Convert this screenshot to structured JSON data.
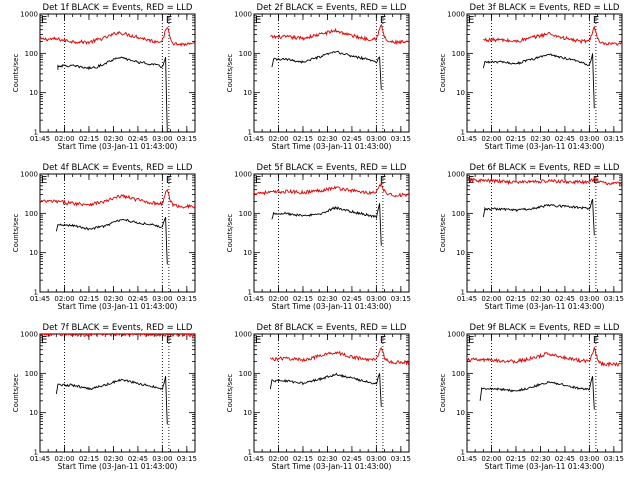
{
  "figure": {
    "background": "#ffffff"
  },
  "colors": {
    "events": "#000000",
    "lld": "#e00000",
    "frame": "#000000"
  },
  "chart_data": [
    {
      "type": "line",
      "scale_y": "log",
      "ylim": [
        1,
        1000
      ],
      "xlim": [
        "01:45",
        "03:20"
      ],
      "title": "Det 1f BLACK = Events, RED = LLD",
      "xlabel": "Start Time (03-Jan-11 01:43:00)",
      "ylabel": "Counts/sec",
      "x_ticks": [
        "01:45",
        "02:00",
        "02:15",
        "02:30",
        "02:45",
        "03:00",
        "03:15"
      ],
      "y_ticks": [
        "1",
        "10",
        "100",
        "1000"
      ],
      "dotted_vlines": [
        "02:00",
        "03:00"
      ],
      "flag_label": "E",
      "flag_time": "03:04",
      "series": [
        {
          "color": "#e00000",
          "x": [
            "01:45",
            "01:55",
            "02:05",
            "02:15",
            "02:25",
            "02:33",
            "02:45",
            "02:55",
            "03:00",
            "03:03",
            "03:05",
            "03:07",
            "03:10",
            "03:20"
          ],
          "y": [
            230,
            230,
            200,
            190,
            250,
            340,
            260,
            200,
            210,
            480,
            240,
            180,
            170,
            170
          ]
        },
        {
          "color": "#000000",
          "x": [
            "01:56",
            "01:56",
            "02:05",
            "02:15",
            "02:20",
            "02:33",
            "02:45",
            "02:55",
            "03:00",
            "03:02",
            "03:03",
            "03:03"
          ],
          "y": [
            38,
            48,
            48,
            42,
            45,
            80,
            60,
            52,
            45,
            80,
            1,
            1
          ]
        }
      ]
    },
    {
      "type": "line",
      "scale_y": "log",
      "ylim": [
        1,
        1000
      ],
      "xlim": [
        "01:45",
        "03:20"
      ],
      "title": "Det 2f BLACK = Events, RED = LLD",
      "xlabel": "Start Time (03-Jan-11 01:43:00)",
      "ylabel": "Counts/sec",
      "x_ticks": [
        "01:45",
        "02:00",
        "02:15",
        "02:30",
        "02:45",
        "03:00",
        "03:15"
      ],
      "y_ticks": [
        "1",
        "10",
        "100",
        "1000"
      ],
      "dotted_vlines": [
        "02:00",
        "03:00"
      ],
      "flag_label": "E",
      "flag_time": "03:04",
      "series": [
        {
          "color": "#e00000",
          "x": [
            "01:55",
            "02:05",
            "02:15",
            "02:25",
            "02:35",
            "02:45",
            "02:55",
            "03:00",
            "03:03",
            "03:05",
            "03:07",
            "03:10",
            "03:20"
          ],
          "y": [
            260,
            260,
            240,
            300,
            380,
            280,
            230,
            240,
            520,
            260,
            200,
            190,
            190
          ]
        },
        {
          "color": "#000000",
          "x": [
            "01:56",
            "01:57",
            "02:05",
            "02:15",
            "02:25",
            "02:35",
            "02:45",
            "02:55",
            "03:00",
            "03:02",
            "03:03",
            "03:03"
          ],
          "y": [
            45,
            70,
            70,
            60,
            80,
            110,
            85,
            70,
            60,
            80,
            12,
            12
          ]
        }
      ]
    },
    {
      "type": "line",
      "scale_y": "log",
      "ylim": [
        1,
        1000
      ],
      "xlim": [
        "01:45",
        "03:20"
      ],
      "title": "Det 3f BLACK = Events, RED = LLD",
      "xlabel": "Start Time (03-Jan-11 01:43:00)",
      "ylabel": "Counts/sec",
      "x_ticks": [
        "01:45",
        "02:00",
        "02:15",
        "02:30",
        "02:45",
        "03:00",
        "03:15"
      ],
      "y_ticks": [
        "1",
        "10",
        "100",
        "1000"
      ],
      "dotted_vlines": [
        "02:00",
        "03:00"
      ],
      "flag_label": "E",
      "flag_time": "03:04",
      "series": [
        {
          "color": "#e00000",
          "x": [
            "01:55",
            "02:05",
            "02:15",
            "02:25",
            "02:35",
            "02:45",
            "02:55",
            "03:00",
            "03:03",
            "03:05",
            "03:07",
            "03:10",
            "03:20"
          ],
          "y": [
            220,
            220,
            200,
            250,
            320,
            240,
            200,
            210,
            470,
            230,
            180,
            170,
            170
          ]
        },
        {
          "color": "#000000",
          "x": [
            "01:55",
            "01:56",
            "02:05",
            "02:15",
            "02:25",
            "02:35",
            "02:45",
            "02:55",
            "03:00",
            "03:02",
            "03:03",
            "03:03"
          ],
          "y": [
            42,
            60,
            60,
            55,
            70,
            95,
            75,
            60,
            50,
            100,
            4,
            4
          ]
        }
      ]
    },
    {
      "type": "line",
      "scale_y": "log",
      "ylim": [
        1,
        1000
      ],
      "xlim": [
        "01:45",
        "03:20"
      ],
      "title": "Det 4f BLACK = Events, RED = LLD",
      "xlabel": "Start Time (03-Jan-11 01:43:00)",
      "ylabel": "Counts/sec",
      "x_ticks": [
        "01:45",
        "02:00",
        "02:15",
        "02:30",
        "02:45",
        "03:00",
        "03:15"
      ],
      "y_ticks": [
        "1",
        "10",
        "100",
        "1000"
      ],
      "dotted_vlines": [
        "02:00",
        "03:00"
      ],
      "flag_label": "E",
      "flag_time": "03:04",
      "series": [
        {
          "color": "#e00000",
          "x": [
            "01:45",
            "01:55",
            "02:05",
            "02:15",
            "02:25",
            "02:35",
            "02:45",
            "02:55",
            "03:00",
            "03:03",
            "03:05",
            "03:07",
            "03:10",
            "03:20"
          ],
          "y": [
            200,
            200,
            180,
            170,
            200,
            280,
            220,
            180,
            180,
            420,
            200,
            160,
            150,
            150
          ]
        },
        {
          "color": "#000000",
          "x": [
            "01:55",
            "01:56",
            "02:05",
            "02:15",
            "02:25",
            "02:35",
            "02:45",
            "02:55",
            "03:00",
            "03:02",
            "03:03",
            "03:03"
          ],
          "y": [
            35,
            50,
            50,
            40,
            48,
            70,
            58,
            50,
            45,
            80,
            5,
            5
          ]
        }
      ]
    },
    {
      "type": "line",
      "scale_y": "log",
      "ylim": [
        1,
        1000
      ],
      "xlim": [
        "01:45",
        "03:20"
      ],
      "title": "Det 5f BLACK = Events, RED = LLD",
      "xlabel": "Start Time (03-Jan-11 01:43:00)",
      "ylabel": "Counts/sec",
      "x_ticks": [
        "01:45",
        "02:00",
        "02:15",
        "02:30",
        "02:45",
        "03:00",
        "03:15"
      ],
      "y_ticks": [
        "1",
        "10",
        "100",
        "1000"
      ],
      "dotted_vlines": [
        "02:00",
        "03:00"
      ],
      "flag_label": "E",
      "flag_time": "03:04",
      "series": [
        {
          "color": "#e00000",
          "x": [
            "01:45",
            "01:55",
            "02:05",
            "02:15",
            "02:25",
            "02:35",
            "02:45",
            "02:55",
            "03:00",
            "03:03",
            "03:05",
            "03:07",
            "03:10",
            "03:20"
          ],
          "y": [
            330,
            340,
            360,
            340,
            380,
            450,
            380,
            330,
            340,
            560,
            360,
            300,
            290,
            290
          ]
        },
        {
          "color": "#000000",
          "x": [
            "01:56",
            "01:57",
            "02:05",
            "02:15",
            "02:25",
            "02:35",
            "02:45",
            "02:55",
            "03:00",
            "03:02",
            "03:03",
            "03:03"
          ],
          "y": [
            70,
            100,
            100,
            85,
            95,
            140,
            110,
            90,
            80,
            180,
            15,
            15
          ]
        }
      ]
    },
    {
      "type": "line",
      "scale_y": "log",
      "ylim": [
        1,
        1000
      ],
      "xlim": [
        "01:45",
        "03:20"
      ],
      "title": "Det 6f BLACK = Events, RED = LLD",
      "xlabel": "Start Time (03-Jan-11 01:43:00)",
      "ylabel": "Counts/sec",
      "x_ticks": [
        "01:45",
        "02:00",
        "02:15",
        "02:30",
        "02:45",
        "03:00",
        "03:15"
      ],
      "y_ticks": [
        "1",
        "10",
        "100",
        "1000"
      ],
      "dotted_vlines": [
        "02:00",
        "03:00"
      ],
      "flag_label": "E",
      "flag_time": "03:04",
      "series": [
        {
          "color": "#e00000",
          "x": [
            "01:45",
            "01:55",
            "02:05",
            "02:15",
            "02:25",
            "02:35",
            "02:45",
            "02:55",
            "03:00",
            "03:03",
            "03:05",
            "03:07",
            "03:10",
            "03:20"
          ],
          "y": [
            700,
            680,
            650,
            620,
            640,
            660,
            640,
            620,
            600,
            800,
            650,
            600,
            580,
            580
          ]
        },
        {
          "color": "#000000",
          "x": [
            "01:55",
            "01:56",
            "02:05",
            "02:15",
            "02:25",
            "02:35",
            "02:45",
            "02:55",
            "03:00",
            "03:02",
            "03:03",
            "03:03"
          ],
          "y": [
            80,
            130,
            130,
            120,
            130,
            160,
            150,
            140,
            130,
            230,
            28,
            28
          ]
        }
      ]
    },
    {
      "type": "line",
      "scale_y": "log",
      "ylim": [
        1,
        1000
      ],
      "xlim": [
        "01:45",
        "03:20"
      ],
      "title": "Det 7f BLACK = Events, RED = LLD",
      "xlabel": "Start Time (03-Jan-11 01:43:00)",
      "ylabel": "Counts/sec",
      "x_ticks": [
        "01:45",
        "02:00",
        "02:15",
        "02:30",
        "02:45",
        "03:00",
        "03:15"
      ],
      "y_ticks": [
        "1",
        "10",
        "100",
        "1000"
      ],
      "dotted_vlines": [
        "02:00",
        "03:00"
      ],
      "flag_label": "E",
      "flag_time": "03:04",
      "series": [
        {
          "color": "#e00000",
          "x": [
            "01:45",
            "01:55",
            "02:05",
            "02:15",
            "02:25",
            "02:35",
            "02:45",
            "02:55",
            "03:00",
            "03:03",
            "03:05",
            "03:07",
            "03:10",
            "03:20"
          ],
          "y": [
            1000,
            980,
            960,
            950,
            980,
            1000,
            990,
            970,
            960,
            1000,
            980,
            960,
            950,
            950
          ]
        },
        {
          "color": "#000000",
          "x": [
            "01:55",
            "01:56",
            "02:05",
            "02:15",
            "02:25",
            "02:35",
            "02:45",
            "02:55",
            "03:00",
            "03:02",
            "03:03",
            "03:03"
          ],
          "y": [
            30,
            50,
            50,
            40,
            50,
            70,
            55,
            45,
            40,
            85,
            5,
            5
          ]
        }
      ]
    },
    {
      "type": "line",
      "scale_y": "log",
      "ylim": [
        1,
        1000
      ],
      "xlim": [
        "01:45",
        "03:20"
      ],
      "title": "Det 8f BLACK = Events, RED = LLD",
      "xlabel": "Start Time (03-Jan-11 01:43:00)",
      "ylabel": "Counts/sec",
      "x_ticks": [
        "01:45",
        "02:00",
        "02:15",
        "02:30",
        "02:45",
        "03:00",
        "03:15"
      ],
      "y_ticks": [
        "1",
        "10",
        "100",
        "1000"
      ],
      "dotted_vlines": [
        "02:00",
        "03:00"
      ],
      "flag_label": "E",
      "flag_time": "03:04",
      "series": [
        {
          "color": "#e00000",
          "x": [
            "01:55",
            "02:05",
            "02:15",
            "02:25",
            "02:35",
            "02:45",
            "02:55",
            "03:00",
            "03:03",
            "03:05",
            "03:07",
            "03:10",
            "03:20"
          ],
          "y": [
            230,
            240,
            220,
            270,
            350,
            260,
            220,
            230,
            480,
            250,
            200,
            190,
            190
          ]
        },
        {
          "color": "#000000",
          "x": [
            "01:55",
            "01:56",
            "02:05",
            "02:15",
            "02:25",
            "02:35",
            "02:45",
            "02:55",
            "03:00",
            "03:02",
            "03:03",
            "03:03"
          ],
          "y": [
            40,
            65,
            65,
            55,
            70,
            95,
            75,
            60,
            55,
            100,
            14,
            14
          ]
        }
      ]
    },
    {
      "type": "line",
      "scale_y": "log",
      "ylim": [
        1,
        1000
      ],
      "xlim": [
        "01:45",
        "03:20"
      ],
      "title": "Det 9f BLACK = Events, RED = LLD",
      "xlabel": "Start Time (03-Jan-11 01:43:00)",
      "ylabel": "Counts/sec",
      "x_ticks": [
        "01:45",
        "02:00",
        "02:15",
        "02:30",
        "02:45",
        "03:00",
        "03:15"
      ],
      "y_ticks": [
        "1",
        "10",
        "100",
        "1000"
      ],
      "dotted_vlines": [
        "02:00",
        "03:00"
      ],
      "flag_label": "E",
      "flag_time": "03:04",
      "series": [
        {
          "color": "#e00000",
          "x": [
            "01:45",
            "01:55",
            "02:05",
            "02:15",
            "02:25",
            "02:35",
            "02:45",
            "02:55",
            "03:00",
            "03:03",
            "03:05",
            "03:07",
            "03:10",
            "03:20"
          ],
          "y": [
            220,
            220,
            210,
            200,
            240,
            320,
            250,
            210,
            210,
            440,
            230,
            180,
            170,
            170
          ]
        },
        {
          "color": "#000000",
          "x": [
            "01:53",
            "01:54",
            "02:05",
            "02:15",
            "02:25",
            "02:35",
            "02:45",
            "02:55",
            "03:00",
            "03:02",
            "03:03",
            "03:03"
          ],
          "y": [
            20,
            40,
            40,
            35,
            45,
            60,
            50,
            40,
            40,
            85,
            12,
            12
          ]
        }
      ]
    }
  ]
}
